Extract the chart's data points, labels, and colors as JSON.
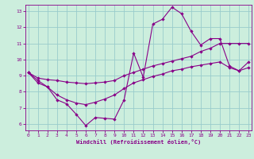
{
  "xlabel": "Windchill (Refroidissement éolien,°C)",
  "bg_color": "#cceedd",
  "line_color": "#880088",
  "grid_color": "#99cccc",
  "x_ticks": [
    0,
    1,
    2,
    3,
    4,
    5,
    6,
    7,
    8,
    9,
    10,
    11,
    12,
    13,
    14,
    15,
    16,
    17,
    18,
    19,
    20,
    21,
    22,
    23
  ],
  "y_ticks": [
    6,
    7,
    8,
    9,
    10,
    11,
    12,
    13
  ],
  "ylim": [
    5.6,
    13.4
  ],
  "xlim": [
    -0.3,
    23.3
  ],
  "main_line": [
    9.2,
    8.7,
    8.3,
    7.5,
    7.25,
    6.6,
    5.9,
    6.4,
    6.35,
    6.3,
    7.5,
    10.4,
    8.9,
    12.2,
    12.5,
    13.25,
    12.85,
    11.75,
    10.9,
    11.3,
    11.3,
    9.6,
    9.3,
    9.85
  ],
  "upper_line": [
    9.2,
    8.85,
    8.75,
    8.7,
    8.6,
    8.55,
    8.5,
    8.55,
    8.6,
    8.7,
    9.0,
    9.2,
    9.4,
    9.6,
    9.75,
    9.9,
    10.05,
    10.2,
    10.5,
    10.7,
    11.0,
    11.0,
    11.0,
    11.0
  ],
  "lower_line": [
    9.2,
    8.55,
    8.3,
    7.8,
    7.5,
    7.3,
    7.2,
    7.35,
    7.55,
    7.8,
    8.2,
    8.55,
    8.75,
    8.95,
    9.1,
    9.3,
    9.4,
    9.55,
    9.65,
    9.75,
    9.85,
    9.5,
    9.3,
    9.5
  ]
}
